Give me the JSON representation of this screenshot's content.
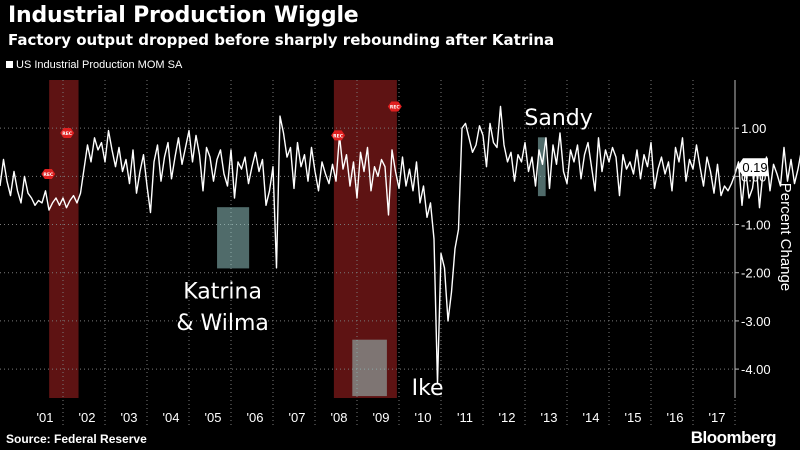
{
  "header": {
    "title": "Industrial Production Wiggle",
    "subtitle": "Factory output dropped before sharply rebounding after Katrina"
  },
  "footer": {
    "source": "Source: Federal Reserve",
    "brand": "Bloomberg"
  },
  "chart_data": {
    "type": "line",
    "ylabel": "Percent Change",
    "ylim": [
      -4.6,
      2.0
    ],
    "yticks": [
      1.0,
      0.0,
      -1.0,
      -2.0,
      -3.0,
      -4.0
    ],
    "ytick_labels": [
      "1.00",
      "0.00",
      "-1.00",
      "-2.00",
      "-3.00",
      "-4.00"
    ],
    "x_start": 2000.0,
    "x_end": 2017.5,
    "xticks": [
      {
        "x": 2001.5,
        "label": "'01"
      },
      {
        "x": 2002.5,
        "label": "'02"
      },
      {
        "x": 2003.5,
        "label": "'03"
      },
      {
        "x": 2004.5,
        "label": "'04"
      },
      {
        "x": 2005.5,
        "label": "'05"
      },
      {
        "x": 2006.5,
        "label": "'06"
      },
      {
        "x": 2007.5,
        "label": "'07"
      },
      {
        "x": 2008.5,
        "label": "'08"
      },
      {
        "x": 2009.5,
        "label": "'09"
      },
      {
        "x": 2010.5,
        "label": "'10"
      },
      {
        "x": 2011.5,
        "label": "'11"
      },
      {
        "x": 2012.5,
        "label": "'12"
      },
      {
        "x": 2013.5,
        "label": "'13"
      },
      {
        "x": 2014.5,
        "label": "'14"
      },
      {
        "x": 2015.5,
        "label": "'15"
      },
      {
        "x": 2016.5,
        "label": "'16"
      },
      {
        "x": 2017.5,
        "label": "'17"
      }
    ],
    "last_value": 0.19,
    "last_value_label": "0.19",
    "recessions": [
      {
        "start": 2001.17,
        "end": 2001.87
      },
      {
        "start": 2007.95,
        "end": 2009.45
      }
    ],
    "rec_markers": [
      {
        "x": 2001.15,
        "y": 0.05,
        "label": "REC"
      },
      {
        "x": 2001.6,
        "y": 0.9,
        "label": "REC"
      },
      {
        "x": 2008.05,
        "y": 0.85,
        "label": "REC"
      },
      {
        "x": 2009.4,
        "y": 1.45,
        "label": "REC"
      }
    ],
    "annotations": [
      {
        "label_lines": [
          "Katrina",
          "& Wilma"
        ],
        "box_x": [
          2005.18,
          2005.92
        ],
        "box_y": [
          -0.65,
          -1.9
        ],
        "text_x": 2005.3,
        "text_y": [
          -2.35,
          -3.0
        ],
        "anchor": "middle"
      },
      {
        "label_lines": [
          "Ike"
        ],
        "box_x": [
          2008.4,
          2009.2
        ],
        "box_y": [
          -3.4,
          -4.55
        ],
        "text_x": 2009.8,
        "text_y": [
          -4.35
        ],
        "anchor": "start"
      },
      {
        "label_lines": [
          "Sandy"
        ],
        "box_x": [
          2012.82,
          2012.98
        ],
        "box_y": [
          0.8,
          -0.4
        ],
        "text_x": 2013.3,
        "text_y": [
          1.25
        ],
        "anchor": "middle"
      }
    ],
    "series": [
      {
        "name": "US Industrial Production MOM SA",
        "x_start": 2000.0,
        "step": 0.0833333,
        "values": [
          -0.2,
          0.35,
          -0.1,
          -0.4,
          0.1,
          -0.3,
          -0.55,
          0.0,
          -0.35,
          -0.45,
          -0.6,
          -0.5,
          -0.55,
          -0.3,
          -0.7,
          -0.55,
          -0.45,
          -0.6,
          -0.45,
          -0.65,
          -0.5,
          -0.4,
          -0.55,
          -0.35,
          0.15,
          0.65,
          0.3,
          0.8,
          0.55,
          0.7,
          0.3,
          0.95,
          0.55,
          0.2,
          0.6,
          0.1,
          0.35,
          -0.15,
          0.55,
          -0.35,
          0.1,
          0.45,
          -0.2,
          -0.75,
          0.3,
          0.65,
          -0.1,
          0.4,
          0.7,
          -0.05,
          0.4,
          0.8,
          0.25,
          0.6,
          0.95,
          0.3,
          0.85,
          0.45,
          -0.3,
          0.6,
          0.4,
          -0.1,
          0.35,
          0.55,
          0.05,
          -0.2,
          0.55,
          -0.45,
          0.3,
          0.15,
          0.4,
          -0.15,
          0.2,
          0.5,
          0.1,
          0.35,
          -0.6,
          -0.3,
          0.2,
          -1.9,
          1.25,
          0.9,
          0.4,
          0.6,
          -0.25,
          0.7,
          0.2,
          0.45,
          -0.1,
          0.6,
          0.1,
          -0.3,
          0.3,
          0.05,
          -0.15,
          0.25,
          -0.1,
          0.85,
          0.15,
          0.45,
          -0.2,
          0.3,
          -0.45,
          0.5,
          0.1,
          0.6,
          -0.3,
          0.2,
          0.0,
          0.35,
          0.2,
          -0.8,
          0.55,
          0.1,
          -0.25,
          0.4,
          -0.2,
          0.15,
          -0.3,
          0.3,
          -0.55,
          -0.2,
          -0.85,
          -0.55,
          -1.3,
          -4.3,
          -1.6,
          -1.9,
          -3.0,
          -2.4,
          -1.5,
          -1.1,
          1.0,
          1.1,
          0.8,
          0.5,
          0.65,
          1.05,
          0.85,
          0.2,
          1.1,
          0.7,
          0.6,
          1.45,
          0.65,
          0.3,
          0.5,
          -0.1,
          0.45,
          0.3,
          0.7,
          0.1,
          0.4,
          -0.2,
          0.55,
          0.25,
          0.8,
          -0.25,
          0.65,
          0.25,
          0.9,
          0.1,
          -0.15,
          0.55,
          0.3,
          0.65,
          -0.05,
          0.45,
          0.7,
          0.2,
          -0.3,
          0.8,
          0.1,
          0.55,
          0.3,
          0.6,
          0.4,
          -0.4,
          0.45,
          0.15,
          0.3,
          0.05,
          0.55,
          -0.05,
          0.45,
          0.2,
          0.7,
          -0.25,
          0.15,
          0.4,
          0.05,
          0.3,
          -0.3,
          0.6,
          0.3,
          0.8,
          -0.1,
          0.35,
          0.15,
          0.65,
          0.2,
          -0.2,
          0.4,
          0.1,
          -0.35,
          0.25,
          -0.4,
          -0.2,
          -0.3,
          -0.15,
          0.05,
          0.3,
          -0.6,
          0.15,
          -0.45,
          -0.25,
          0.3,
          -0.65,
          0.1,
          0.4,
          -0.3,
          0.25,
          0.05,
          -0.2,
          0.6,
          -0.1,
          0.35,
          -0.15,
          0.15,
          0.55,
          -0.3,
          0.8,
          0.2,
          0.3,
          0.95,
          0.1,
          0.35,
          0.19
        ]
      }
    ]
  }
}
